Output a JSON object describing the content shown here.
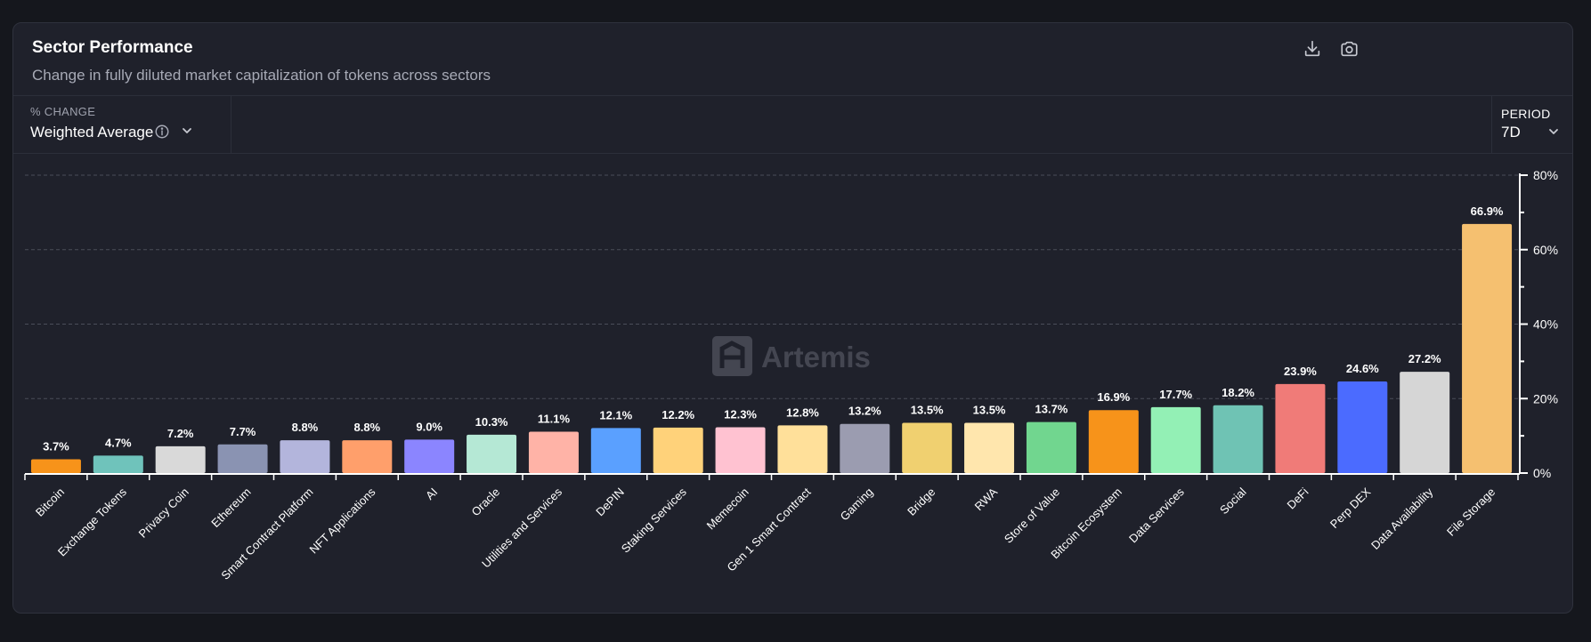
{
  "card": {
    "title": "Sector Performance",
    "subtitle": "Change in fully diluted market capitalization of tokens across sectors",
    "download_icon": "download-icon",
    "camera_icon": "camera-icon"
  },
  "controls": {
    "change_label": "% CHANGE",
    "change_value": "Weighted Average",
    "period_label": "PERIOD",
    "period_value": "7D"
  },
  "watermark": "Artemis",
  "chart_data": {
    "type": "bar",
    "title": "Sector Performance",
    "ylim": [
      0,
      80
    ],
    "yticks": [
      0,
      20,
      40,
      60,
      80
    ],
    "ytick_labels": [
      "0%",
      "20%",
      "40%",
      "60%",
      "80%"
    ],
    "y_axis_position": "right",
    "grid": true,
    "categories": [
      "Bitcoin",
      "Exchange Tokens",
      "Privacy Coin",
      "Ethereum",
      "Smart Contract Platform",
      "NFT Applications",
      "AI",
      "Oracle",
      "Utilities and Services",
      "DePIN",
      "Staking Services",
      "Memecoin",
      "Gen 1 Smart Contract",
      "Gaming",
      "Bridge",
      "RWA",
      "Store of Value",
      "Bitcoin Ecosystem",
      "Data Services",
      "Social",
      "DeFi",
      "Perp DEX",
      "Data Availability",
      "File Storage"
    ],
    "values": [
      3.7,
      4.7,
      7.2,
      7.7,
      8.8,
      8.8,
      9.0,
      10.3,
      11.1,
      12.1,
      12.2,
      12.3,
      12.8,
      13.2,
      13.5,
      13.5,
      13.7,
      16.9,
      17.7,
      18.2,
      23.9,
      24.6,
      27.2,
      66.9
    ],
    "value_labels": [
      "3.7%",
      "4.7%",
      "7.2%",
      "7.7%",
      "8.8%",
      "8.8%",
      "9.0%",
      "10.3%",
      "11.1%",
      "12.1%",
      "12.2%",
      "12.3%",
      "12.8%",
      "13.2%",
      "13.5%",
      "13.5%",
      "13.7%",
      "16.9%",
      "17.7%",
      "18.2%",
      "23.9%",
      "24.6%",
      "27.2%",
      "66.9%"
    ],
    "colors": [
      "#f7931a",
      "#6fc3bb",
      "#d9d9d9",
      "#8a93b2",
      "#b3b5dc",
      "#ff9f6b",
      "#8b85ff",
      "#b5e8d5",
      "#ffb3a7",
      "#5aa0ff",
      "#ffd27a",
      "#ffc2d1",
      "#ffe09a",
      "#9b9cb0",
      "#f0d070",
      "#ffe6ad",
      "#71d68f",
      "#f7931a",
      "#93f0b5",
      "#6fc3b4",
      "#f07b78",
      "#4b6bff",
      "#d6d6d6",
      "#f5c070"
    ]
  }
}
